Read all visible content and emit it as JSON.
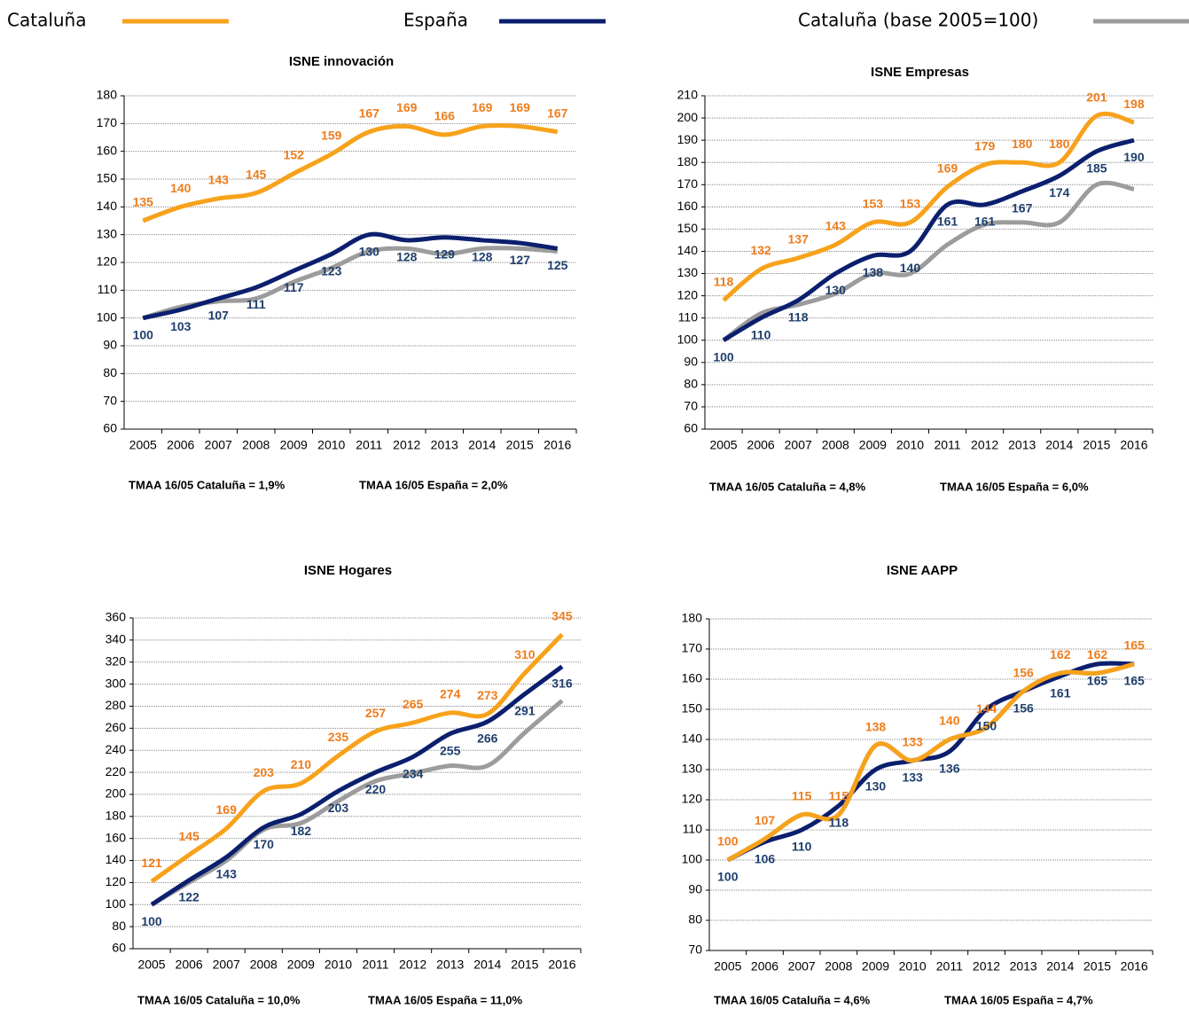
{
  "legend": [
    {
      "name": "Cataluña",
      "color": "#f7a21b"
    },
    {
      "name": "España",
      "color": "#0b1f6e"
    },
    {
      "name": "Cataluña (base 2005=100)",
      "color": "#9c9c9c"
    }
  ],
  "chart_data": [
    {
      "type": "line",
      "title": "ISNE innovación",
      "categories": [
        "2005",
        "2006",
        "2007",
        "2008",
        "2009",
        "2010",
        "2011",
        "2012",
        "2013",
        "2014",
        "2015",
        "2016"
      ],
      "series": [
        {
          "color": "#f7a21b",
          "label_color": "#ee7d1c",
          "data_labels": true,
          "values": [
            135,
            140,
            143,
            145,
            152,
            159,
            167,
            169,
            166,
            169,
            169,
            167
          ]
        },
        {
          "color": "#0b1f6e",
          "label_color": "#1f3f6e",
          "data_labels": true,
          "values": [
            100,
            103,
            107,
            111,
            117,
            123,
            130,
            128,
            129,
            128,
            127,
            125
          ]
        },
        {
          "color": "#9c9c9c",
          "data_labels": false,
          "values": [
            100,
            104,
            106,
            107,
            113,
            118,
            124,
            125,
            123,
            125,
            125,
            124
          ]
        }
      ],
      "ylim": [
        60,
        180
      ],
      "yticks": [
        60,
        70,
        80,
        90,
        100,
        110,
        120,
        130,
        140,
        150,
        160,
        170,
        180
      ],
      "grid": true,
      "notes": [
        "TMAA  16/05 Cataluña = 1,9%",
        "TMAA 16/05 España = 2,0%"
      ]
    },
    {
      "type": "line",
      "title": "ISNE Empresas",
      "categories": [
        "2005",
        "2006",
        "2007",
        "2008",
        "2009",
        "2010",
        "2011",
        "2012",
        "2013",
        "2014",
        "2015",
        "2016"
      ],
      "series": [
        {
          "color": "#f7a21b",
          "label_color": "#ee7d1c",
          "data_labels": true,
          "values": [
            118,
            132,
            137,
            143,
            153,
            153,
            169,
            179,
            180,
            180,
            201,
            198
          ]
        },
        {
          "color": "#0b1f6e",
          "label_color": "#1f3f6e",
          "data_labels": true,
          "values": [
            100,
            110,
            118,
            130,
            138,
            140,
            161,
            161,
            167,
            174,
            185,
            190
          ]
        },
        {
          "color": "#9c9c9c",
          "data_labels": false,
          "values": [
            100,
            112,
            116,
            121,
            130,
            130,
            143,
            152,
            153,
            153,
            170,
            168
          ]
        }
      ],
      "ylim": [
        60,
        210
      ],
      "yticks": [
        60,
        70,
        80,
        90,
        100,
        110,
        120,
        130,
        140,
        150,
        160,
        170,
        180,
        190,
        200,
        210
      ],
      "grid": true,
      "notes": [
        "TMAA 16/05 Cataluña = 4,8%",
        "TMAA 16/05 España = 6,0%"
      ]
    },
    {
      "type": "line",
      "title": "ISNE Hogares",
      "categories": [
        "2005",
        "2006",
        "2007",
        "2008",
        "2009",
        "2010",
        "2011",
        "2012",
        "2013",
        "2014",
        "2015",
        "2016"
      ],
      "series": [
        {
          "color": "#f7a21b",
          "label_color": "#ee7d1c",
          "data_labels": true,
          "values": [
            121,
            145,
            169,
            203,
            210,
            235,
            257,
            265,
            274,
            273,
            310,
            345
          ]
        },
        {
          "color": "#0b1f6e",
          "label_color": "#1f3f6e",
          "data_labels": true,
          "values": [
            100,
            122,
            143,
            170,
            182,
            203,
            220,
            234,
            255,
            266,
            291,
            316
          ]
        },
        {
          "color": "#9c9c9c",
          "data_labels": false,
          "values": [
            100,
            120,
            140,
            168,
            174,
            194,
            212,
            219,
            226,
            226,
            256,
            285
          ]
        }
      ],
      "ylim": [
        60,
        360
      ],
      "yticks": [
        60,
        80,
        100,
        120,
        140,
        160,
        180,
        200,
        220,
        240,
        260,
        280,
        300,
        320,
        340,
        360
      ],
      "grid": true,
      "notes": [
        "TMAA 16/05 Cataluña = 10,0%",
        "TMAA 16/05 España = 11,0%"
      ]
    },
    {
      "type": "line",
      "title": "ISNE AAPP",
      "categories": [
        "2005",
        "2006",
        "2007",
        "2008",
        "2009",
        "2010",
        "2011",
        "2012",
        "2013",
        "2014",
        "2015",
        "2016"
      ],
      "series": [
        {
          "color": "#f7a21b",
          "label_color": "#ee7d1c",
          "data_labels": true,
          "values": [
            100,
            107,
            115,
            115,
            138,
            133,
            140,
            144,
            156,
            162,
            162,
            165
          ]
        },
        {
          "color": "#0b1f6e",
          "label_color": "#1f3f6e",
          "data_labels": true,
          "values": [
            100,
            106,
            110,
            118,
            130,
            133,
            136,
            150,
            156,
            161,
            165,
            165
          ]
        },
        {
          "color": "#9c9c9c",
          "data_labels": false,
          "values": [
            100,
            107,
            115,
            115,
            138,
            133,
            140,
            144,
            156,
            162,
            162,
            165
          ]
        }
      ],
      "ylim": [
        70,
        180
      ],
      "yticks": [
        70,
        80,
        90,
        100,
        110,
        120,
        130,
        140,
        150,
        160,
        170,
        180
      ],
      "grid": true,
      "notes": [
        "TMAA 16/05 Cataluña = 4,6%",
        "TMAA 16/05 España = 4,7%"
      ]
    }
  ]
}
